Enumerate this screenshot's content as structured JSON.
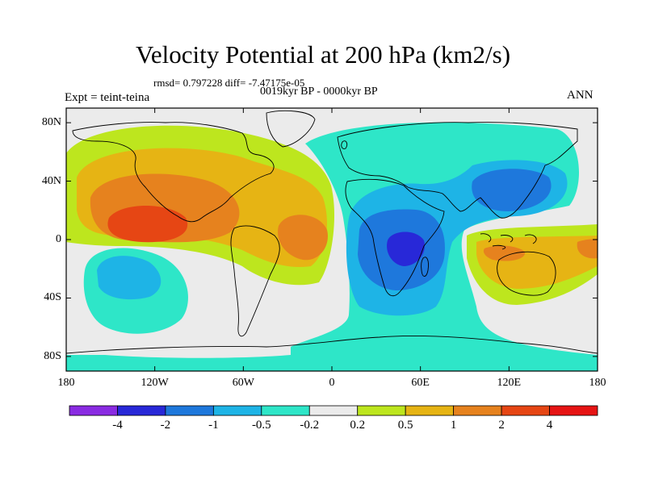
{
  "title": "Velocity Potential at 200 hPa (km2/s)",
  "stats": "rmsd= 0.797228 diff= -7.47175e-05",
  "experiment": "Expt = teint-teina",
  "period": "0019kyr BP - 0000kyr BP",
  "season": "ANN",
  "map": {
    "projection": "cylindrical-equidistant",
    "lat_range": [
      -90,
      90
    ],
    "lon_range": [
      -180,
      180
    ],
    "lat_ticks": [
      {
        "value": 80,
        "label": "80N"
      },
      {
        "value": 40,
        "label": "40N"
      },
      {
        "value": 0,
        "label": "0"
      },
      {
        "value": -40,
        "label": "40S"
      },
      {
        "value": -80,
        "label": "80S"
      }
    ],
    "lon_ticks": [
      {
        "value": -180,
        "label": "180"
      },
      {
        "value": -120,
        "label": "120W"
      },
      {
        "value": -60,
        "label": "60W"
      },
      {
        "value": 0,
        "label": "0"
      },
      {
        "value": 60,
        "label": "60E"
      },
      {
        "value": 120,
        "label": "120E"
      },
      {
        "value": 180,
        "label": "180"
      }
    ],
    "background_color": "#ebebeb"
  },
  "colorbar": {
    "colors": [
      "#8a2be2",
      "#2828d8",
      "#1e78dc",
      "#1eb4e6",
      "#2ee6c8",
      "#ebebeb",
      "#bde61e",
      "#e6b414",
      "#e6821e",
      "#e64614",
      "#e61414"
    ],
    "labels": [
      "-4",
      "-2",
      "-1",
      "-0.5",
      "-0.2",
      "0.2",
      "0.5",
      "1",
      "2",
      "4"
    ]
  }
}
